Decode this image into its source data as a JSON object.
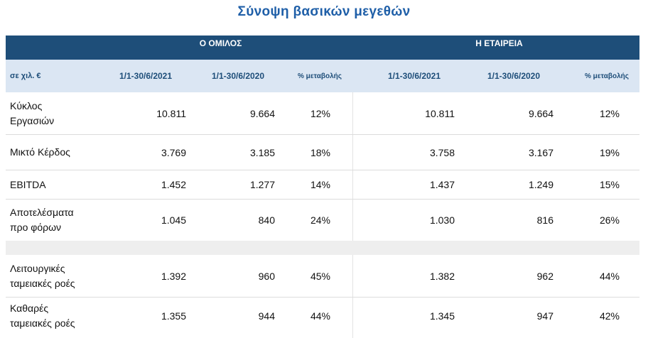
{
  "title": "Σύνοψη βασικών μεγεθών",
  "groups": {
    "group": "Ο ΟΜΙΛΟΣ",
    "company": "Η ΕΤΑΙΡΕΙΑ"
  },
  "columns": {
    "unit": "σε χιλ. €",
    "g_2021": "1/1-30/6/2021",
    "g_2020": "1/1-30/6/2020",
    "g_change": "% μεταβολής",
    "c_2021": "1/1-30/6/2021",
    "c_2020": "1/1-30/6/2020",
    "c_change": "% μεταβολής"
  },
  "rows": [
    {
      "label_1": "Κύκλος",
      "label_2": "Εργασιών",
      "g_2021": "10.811",
      "g_2020": "9.664",
      "g_change": "12%",
      "c_2021": "10.811",
      "c_2020": "9.664",
      "c_change": "12%"
    },
    {
      "label_1": "Μικτό Κέρδος",
      "label_2": "",
      "g_2021": "3.769",
      "g_2020": "3.185",
      "g_change": "18%",
      "c_2021": "3.758",
      "c_2020": "3.167",
      "c_change": "19%"
    },
    {
      "label_1": "EBITDA",
      "label_2": "",
      "g_2021": "1.452",
      "g_2020": "1.277",
      "g_change": "14%",
      "c_2021": "1.437",
      "c_2020": "1.249",
      "c_change": "15%"
    },
    {
      "label_1": "Αποτελέσματα",
      "label_2": "προ φόρων",
      "g_2021": "1.045",
      "g_2020": "840",
      "g_change": "24%",
      "c_2021": "1.030",
      "c_2020": "816",
      "c_change": "26%"
    },
    {
      "label_1": "Λειτουργικές",
      "label_2": "ταμειακές ροές",
      "g_2021": "1.392",
      "g_2020": "960",
      "g_change": "45%",
      "c_2021": "1.382",
      "c_2020": "962",
      "c_change": "44%"
    },
    {
      "label_1": "Καθαρές",
      "label_2": "ταμειακές ροές",
      "g_2021": "1.355",
      "g_2020": "944",
      "g_change": "44%",
      "c_2021": "1.345",
      "c_2020": "947",
      "c_change": "42%"
    }
  ],
  "colors": {
    "title": "#1f5fa8",
    "header_band": "#1e4e79",
    "subheader_bg": "#dbe6f3",
    "gap_bg": "#eeeeee"
  }
}
